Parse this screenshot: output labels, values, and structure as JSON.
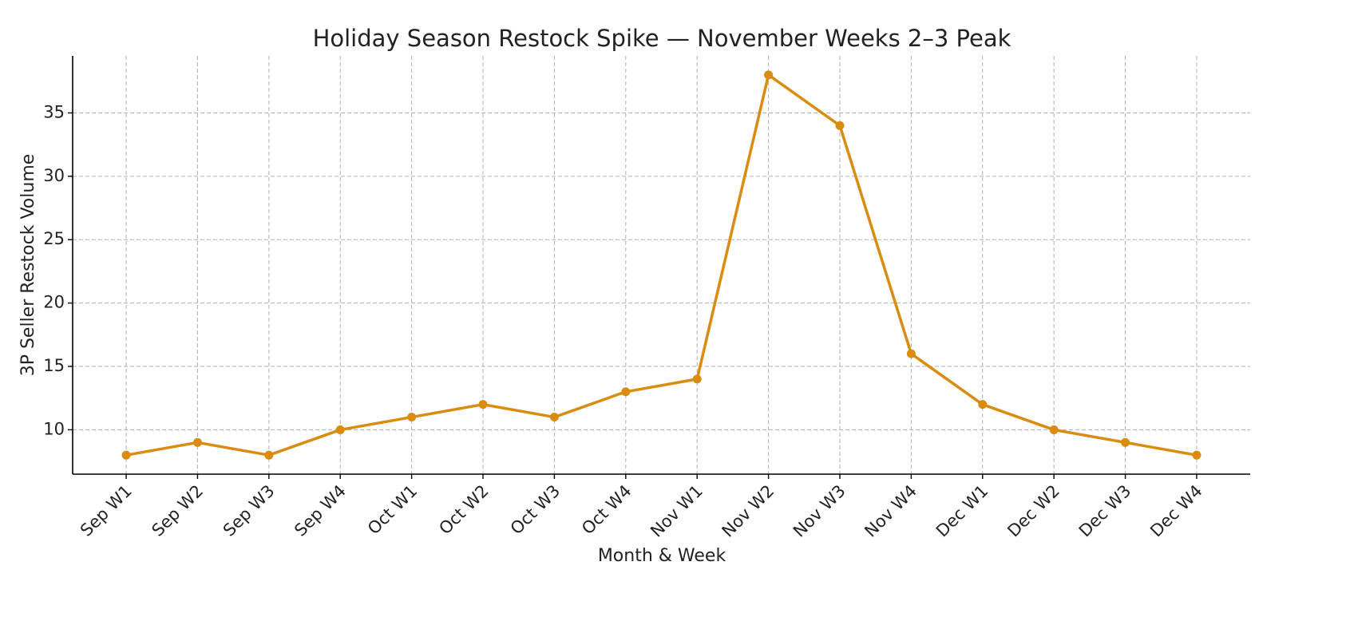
{
  "chart_data": {
    "type": "line",
    "title": "Holiday Season Restock Spike — November Weeks 2–3 Peak",
    "x_label": "Month & Week",
    "y_label": "3P Seller Restock Volume",
    "categories": [
      "Sep W1",
      "Sep W2",
      "Sep W3",
      "Sep W4",
      "Oct W1",
      "Oct W2",
      "Oct W3",
      "Oct W4",
      "Nov W1",
      "Nov W2",
      "Nov W3",
      "Nov W4",
      "Dec W1",
      "Dec W2",
      "Dec W3",
      "Dec W4"
    ],
    "series": [
      {
        "color": "#d98c10",
        "values": [
          8,
          9,
          8,
          10,
          11,
          12,
          11,
          13,
          14,
          38,
          34,
          16,
          12,
          10,
          9,
          8
        ]
      }
    ],
    "ylim": [
      6.5,
      39.5
    ],
    "yticks": [
      10,
      15,
      20,
      25,
      30,
      35
    ],
    "grid": true
  }
}
